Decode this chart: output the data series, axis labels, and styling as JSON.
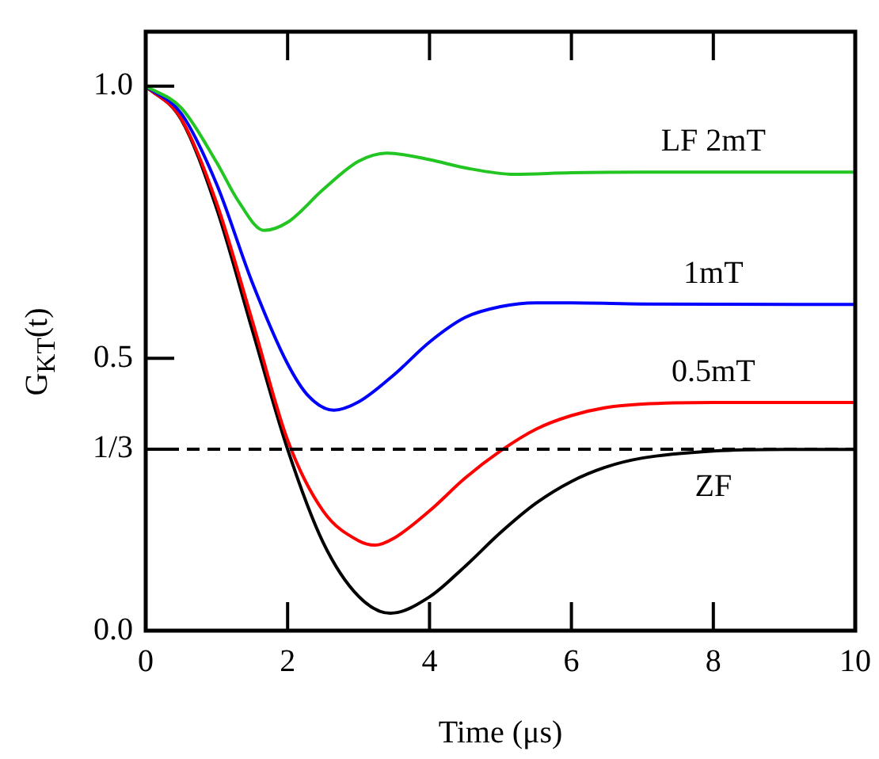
{
  "chart_data": {
    "type": "line",
    "xlabel": "Time (μs)",
    "ylabel": "G$_{KT}$(t)",
    "xlim": [
      0,
      10
    ],
    "xticks": [
      0,
      2,
      4,
      6,
      8,
      10
    ],
    "ylim": [
      0,
      1.1
    ],
    "yticks": [
      {
        "value": 0,
        "label": "0.0"
      },
      {
        "value": 0.3333,
        "label": "1/3"
      },
      {
        "value": 0.5,
        "label": "0.5"
      },
      {
        "value": 1,
        "label": "1.0"
      }
    ],
    "grid": false,
    "legend": false,
    "marker": "none",
    "line_style": "solid",
    "ref_lines": [
      {
        "axis": "y",
        "value": 0.3333,
        "color": "#000000",
        "line_style": "dashed"
      }
    ],
    "series": [
      {
        "name": "LF 2mT",
        "color": "#22c522",
        "x": [
          0,
          0.5,
          1,
          1.3,
          1.67,
          2,
          2.5,
          3,
          3.4,
          4,
          4.5,
          5.2,
          6,
          7,
          10
        ],
        "values": [
          1,
          0.96,
          0.86,
          0.79,
          0.735,
          0.75,
          0.81,
          0.862,
          0.877,
          0.865,
          0.85,
          0.838,
          0.841,
          0.842,
          0.842
        ]
      },
      {
        "name": "1mT",
        "color": "#0000ff",
        "x": [
          0,
          0.5,
          1,
          1.5,
          2,
          2.3,
          2.65,
          3,
          3.5,
          4,
          4.5,
          5,
          5.5,
          6,
          7,
          10
        ],
        "values": [
          1,
          0.95,
          0.82,
          0.64,
          0.49,
          0.43,
          0.405,
          0.42,
          0.47,
          0.53,
          0.575,
          0.595,
          0.602,
          0.602,
          0.6,
          0.599
        ]
      },
      {
        "name": "0.5mT",
        "color": "#ff0000",
        "x": [
          0,
          0.5,
          1,
          1.5,
          2,
          2.5,
          3,
          3.23,
          3.5,
          4,
          4.5,
          5,
          5.5,
          6,
          6.5,
          7,
          8,
          10
        ],
        "values": [
          1,
          0.94,
          0.785,
          0.57,
          0.35,
          0.22,
          0.165,
          0.157,
          0.17,
          0.22,
          0.28,
          0.33,
          0.37,
          0.395,
          0.41,
          0.416,
          0.419,
          0.419
        ]
      },
      {
        "name": "ZF",
        "color": "#000000",
        "x": [
          0,
          0.5,
          1,
          1.5,
          2,
          2.5,
          3,
          3.45,
          4,
          4.5,
          5,
          5.5,
          6,
          6.5,
          7,
          8,
          9,
          10
        ],
        "values": [
          1,
          0.939,
          0.775,
          0.553,
          0.333,
          0.162,
          0.063,
          0.032,
          0.062,
          0.118,
          0.18,
          0.234,
          0.274,
          0.301,
          0.317,
          0.33,
          0.333,
          0.333
        ]
      }
    ]
  }
}
